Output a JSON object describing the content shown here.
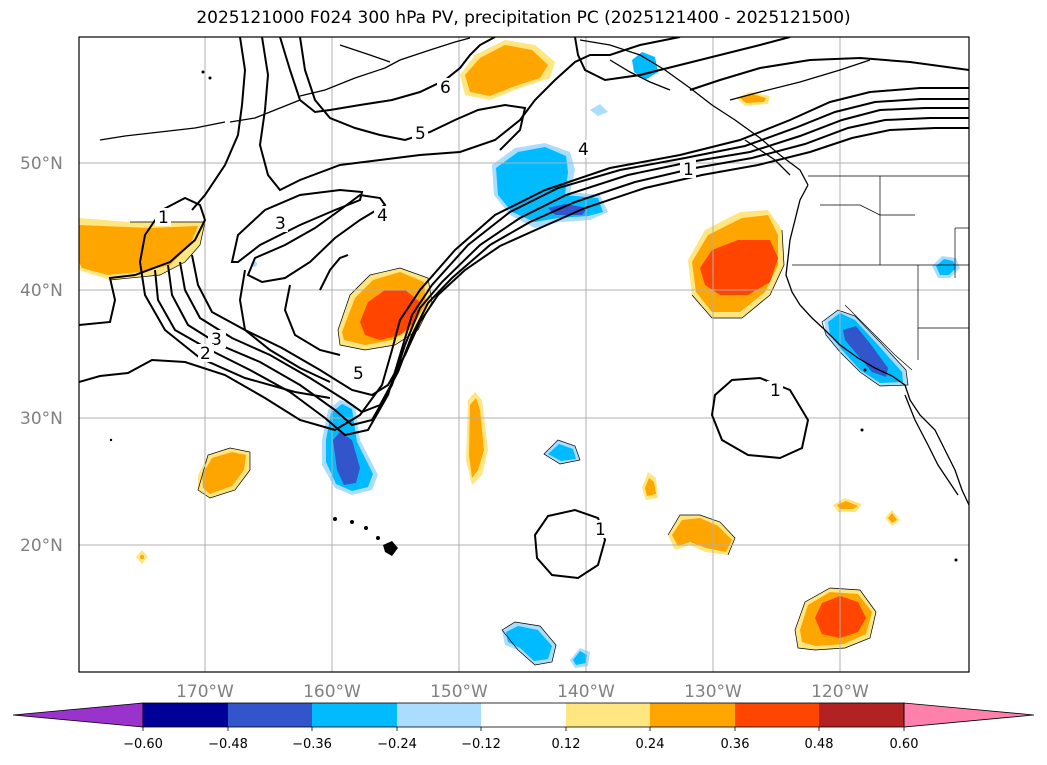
{
  "title": "2025121000 F024 300 hPa PV, precipitation PC (2025121400 - 2025121500)",
  "map": {
    "lat_labels": [
      "50°N",
      "40°N",
      "30°N",
      "20°N"
    ],
    "lon_labels": [
      "170°W",
      "160°W",
      "150°W",
      "140°W",
      "130°W",
      "120°W"
    ],
    "contour_labels": [
      {
        "id": "pv-1a",
        "text": "1"
      },
      {
        "id": "pv-3a",
        "text": "3"
      },
      {
        "id": "pv-3b",
        "text": "3"
      },
      {
        "id": "pv-2",
        "text": "2"
      },
      {
        "id": "pv-4a",
        "text": "4"
      },
      {
        "id": "pv-5a",
        "text": "5"
      },
      {
        "id": "pv-6",
        "text": "6"
      },
      {
        "id": "pv-5b",
        "text": "5"
      },
      {
        "id": "pv-4b",
        "text": "4"
      },
      {
        "id": "pv-1b",
        "text": "1"
      },
      {
        "id": "pv-1c",
        "text": "1"
      },
      {
        "id": "pv-1d",
        "text": "1"
      }
    ],
    "colors": {
      "neg_1": "#9933cc",
      "neg_2": "#000099",
      "neg_3": "#3355cc",
      "neg_4": "#00bbff",
      "neg_5": "#aaddff",
      "zero": "#ffffff",
      "pos_1": "#ffe680",
      "pos_2": "#ffa500",
      "pos_3": "#ff4500",
      "pos_4": "#b22222",
      "pos_5": "#ff80aa"
    }
  },
  "colorbar": {
    "ticks": [
      "−0.60",
      "−0.48",
      "−0.36",
      "−0.24",
      "−0.12",
      "0.12",
      "0.24",
      "0.36",
      "0.48",
      "0.60"
    ]
  }
}
